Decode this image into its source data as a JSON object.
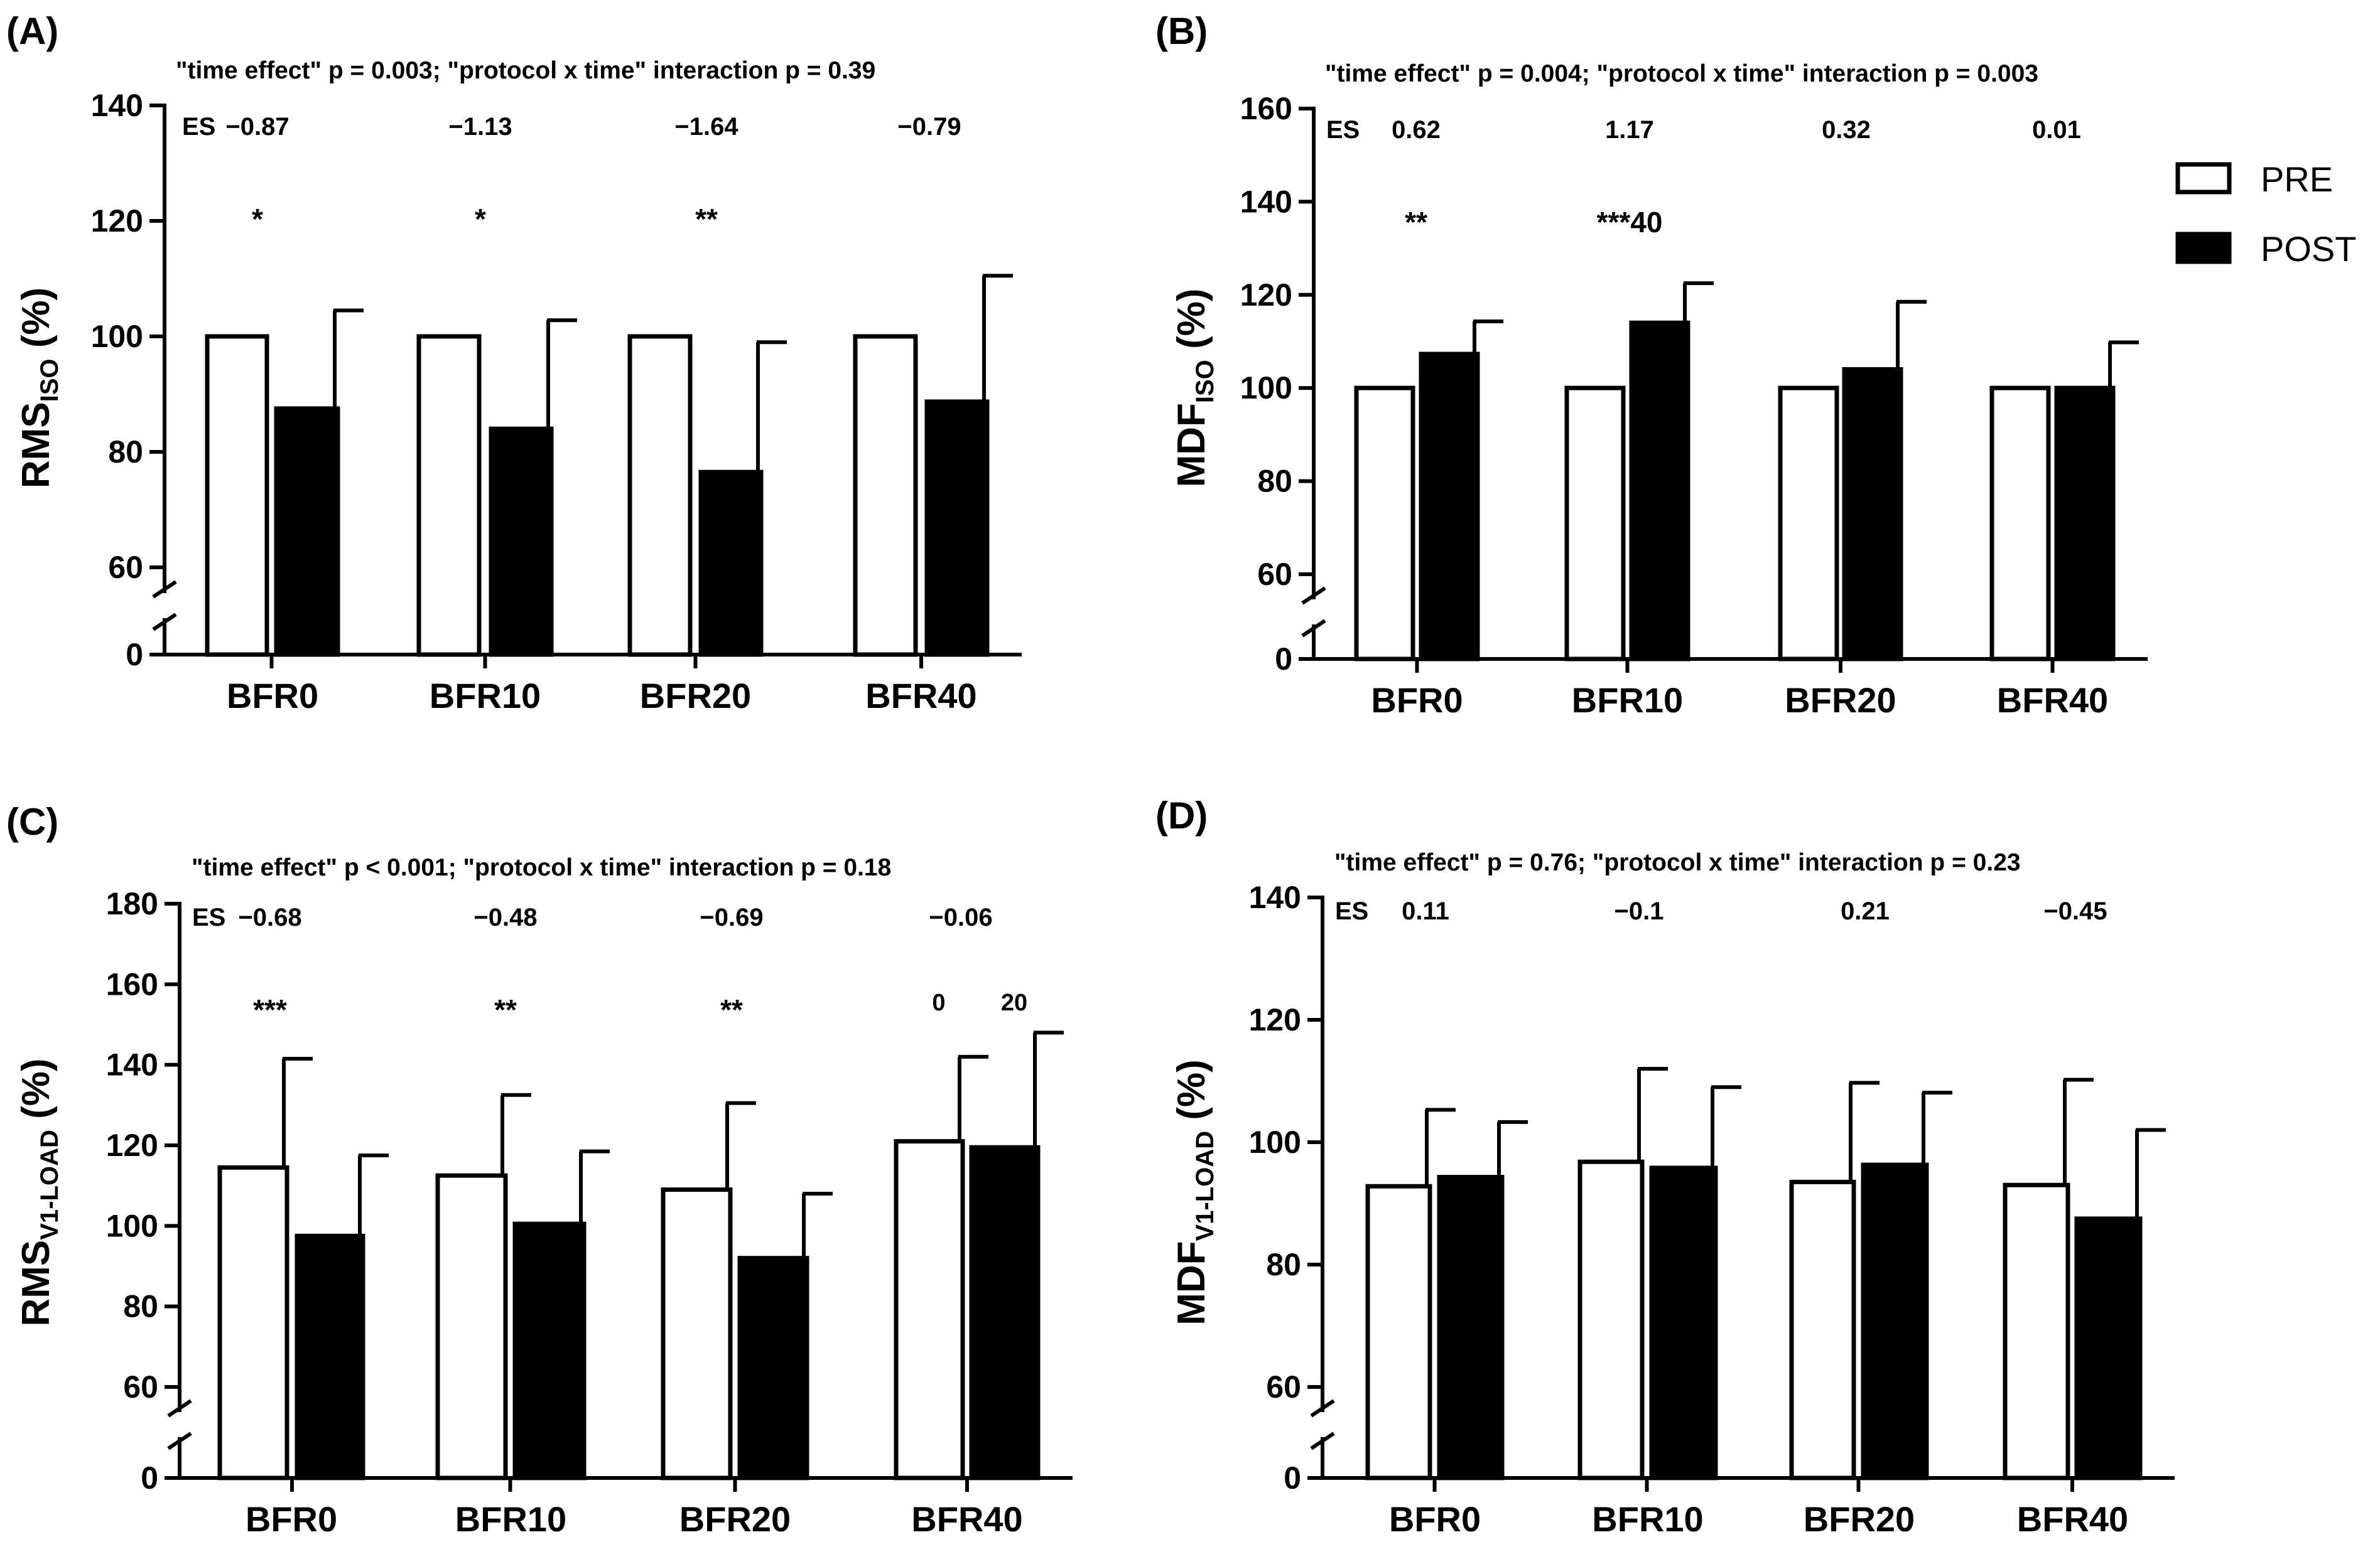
{
  "legend": {
    "pre_label": "PRE",
    "post_label": "POST"
  },
  "chart_data": [
    {
      "panel": "(A)",
      "type": "bar",
      "stats_text": "\"time effect\" p = 0.003; \"protocol x time\" interaction p = 0.39",
      "ylabel_main": "RMS",
      "ylabel_sub": "ISO",
      "ylabel_unit": "(%)",
      "ylim": [
        60,
        140
      ],
      "yticks": [
        60,
        80,
        100,
        120,
        140
      ],
      "axis_break": true,
      "zero_label": "0",
      "categories": [
        "BFR0",
        "BFR10",
        "BFR20",
        "BFR40"
      ],
      "series": [
        {
          "name": "PRE",
          "values": [
            100,
            100,
            100,
            100
          ],
          "errors": [
            0,
            0,
            0,
            0
          ]
        },
        {
          "name": "POST",
          "values": [
            87.5,
            84,
            76.5,
            88.7
          ],
          "errors": [
            17,
            18.8,
            22.5,
            21.8
          ]
        }
      ],
      "es_label": "ES",
      "effect_sizes": [
        "−0.87",
        "−1.13",
        "−1.64",
        "−0.79"
      ],
      "significance": [
        "*",
        "*",
        "**",
        ""
      ],
      "annotations": []
    },
    {
      "panel": "(B)",
      "type": "bar",
      "stats_text": "\"time effect\" p = 0.004; \"protocol x time\" interaction p = 0.003",
      "ylabel_main": "MDF",
      "ylabel_sub": "ISO",
      "ylabel_unit": "(%)",
      "ylim": [
        60,
        160
      ],
      "yticks": [
        60,
        80,
        100,
        120,
        140,
        160
      ],
      "axis_break": true,
      "zero_label": "0",
      "categories": [
        "BFR0",
        "BFR10",
        "BFR20",
        "BFR40"
      ],
      "series": [
        {
          "name": "PRE",
          "values": [
            100,
            100,
            100,
            100
          ],
          "errors": [
            0,
            0,
            0,
            0
          ]
        },
        {
          "name": "POST",
          "values": [
            107.3,
            114,
            104,
            100
          ],
          "errors": [
            7,
            8.5,
            14.5,
            9.8
          ]
        }
      ],
      "es_label": "ES",
      "effect_sizes": [
        "0.62",
        "1.17",
        "0.32",
        "0.01"
      ],
      "significance": [
        "**",
        "***40",
        "",
        ""
      ],
      "annotations": []
    },
    {
      "panel": "(C)",
      "type": "bar",
      "stats_text": "\"time effect\" p < 0.001; \"protocol x time\" interaction p = 0.18",
      "ylabel_main": "RMS",
      "ylabel_sub": "V1-LOAD",
      "ylabel_unit": "(%)",
      "ylim": [
        60,
        180
      ],
      "yticks": [
        60,
        80,
        100,
        120,
        140,
        160,
        180
      ],
      "axis_break": true,
      "zero_label": "0",
      "categories": [
        "BFR0",
        "BFR10",
        "BFR20",
        "BFR40"
      ],
      "series": [
        {
          "name": "PRE",
          "values": [
            114.5,
            112.5,
            109,
            121
          ],
          "errors": [
            27,
            20,
            21.5,
            21
          ]
        },
        {
          "name": "POST",
          "values": [
            97.5,
            100.5,
            92,
            119.5
          ],
          "errors": [
            20,
            18,
            16,
            28.5
          ]
        }
      ],
      "es_label": "ES",
      "effect_sizes": [
        "−0.68",
        "−0.48",
        "−0.69",
        "−0.06"
      ],
      "significance": [
        "***",
        "**",
        "**",
        ""
      ],
      "annotations": [
        {
          "category": 3,
          "bar": "PRE",
          "text": "0"
        },
        {
          "category": 3,
          "bar": "POST",
          "text": "20"
        }
      ]
    },
    {
      "panel": "(D)",
      "type": "bar",
      "stats_text": "\"time effect\" p = 0.76; \"protocol x time\" interaction p = 0.23",
      "ylabel_main": "MDF",
      "ylabel_sub": "V1-LOAD",
      "ylabel_unit": "(%)",
      "ylim": [
        60,
        140
      ],
      "yticks": [
        60,
        80,
        100,
        120,
        140
      ],
      "axis_break": true,
      "zero_label": "0",
      "categories": [
        "BFR0",
        "BFR10",
        "BFR20",
        "BFR40"
      ],
      "series": [
        {
          "name": "PRE",
          "values": [
            92.8,
            96.8,
            93.5,
            93
          ],
          "errors": [
            12.5,
            15.2,
            16.2,
            17.2
          ]
        },
        {
          "name": "POST",
          "values": [
            94.3,
            95.8,
            96.3,
            87.5
          ],
          "errors": [
            9,
            13.2,
            11.8,
            14.5
          ]
        }
      ],
      "es_label": "ES",
      "effect_sizes": [
        "0.11",
        "−0.1",
        "0.21",
        "−0.45"
      ],
      "significance": [
        "",
        "",
        "",
        ""
      ],
      "annotations": []
    }
  ]
}
